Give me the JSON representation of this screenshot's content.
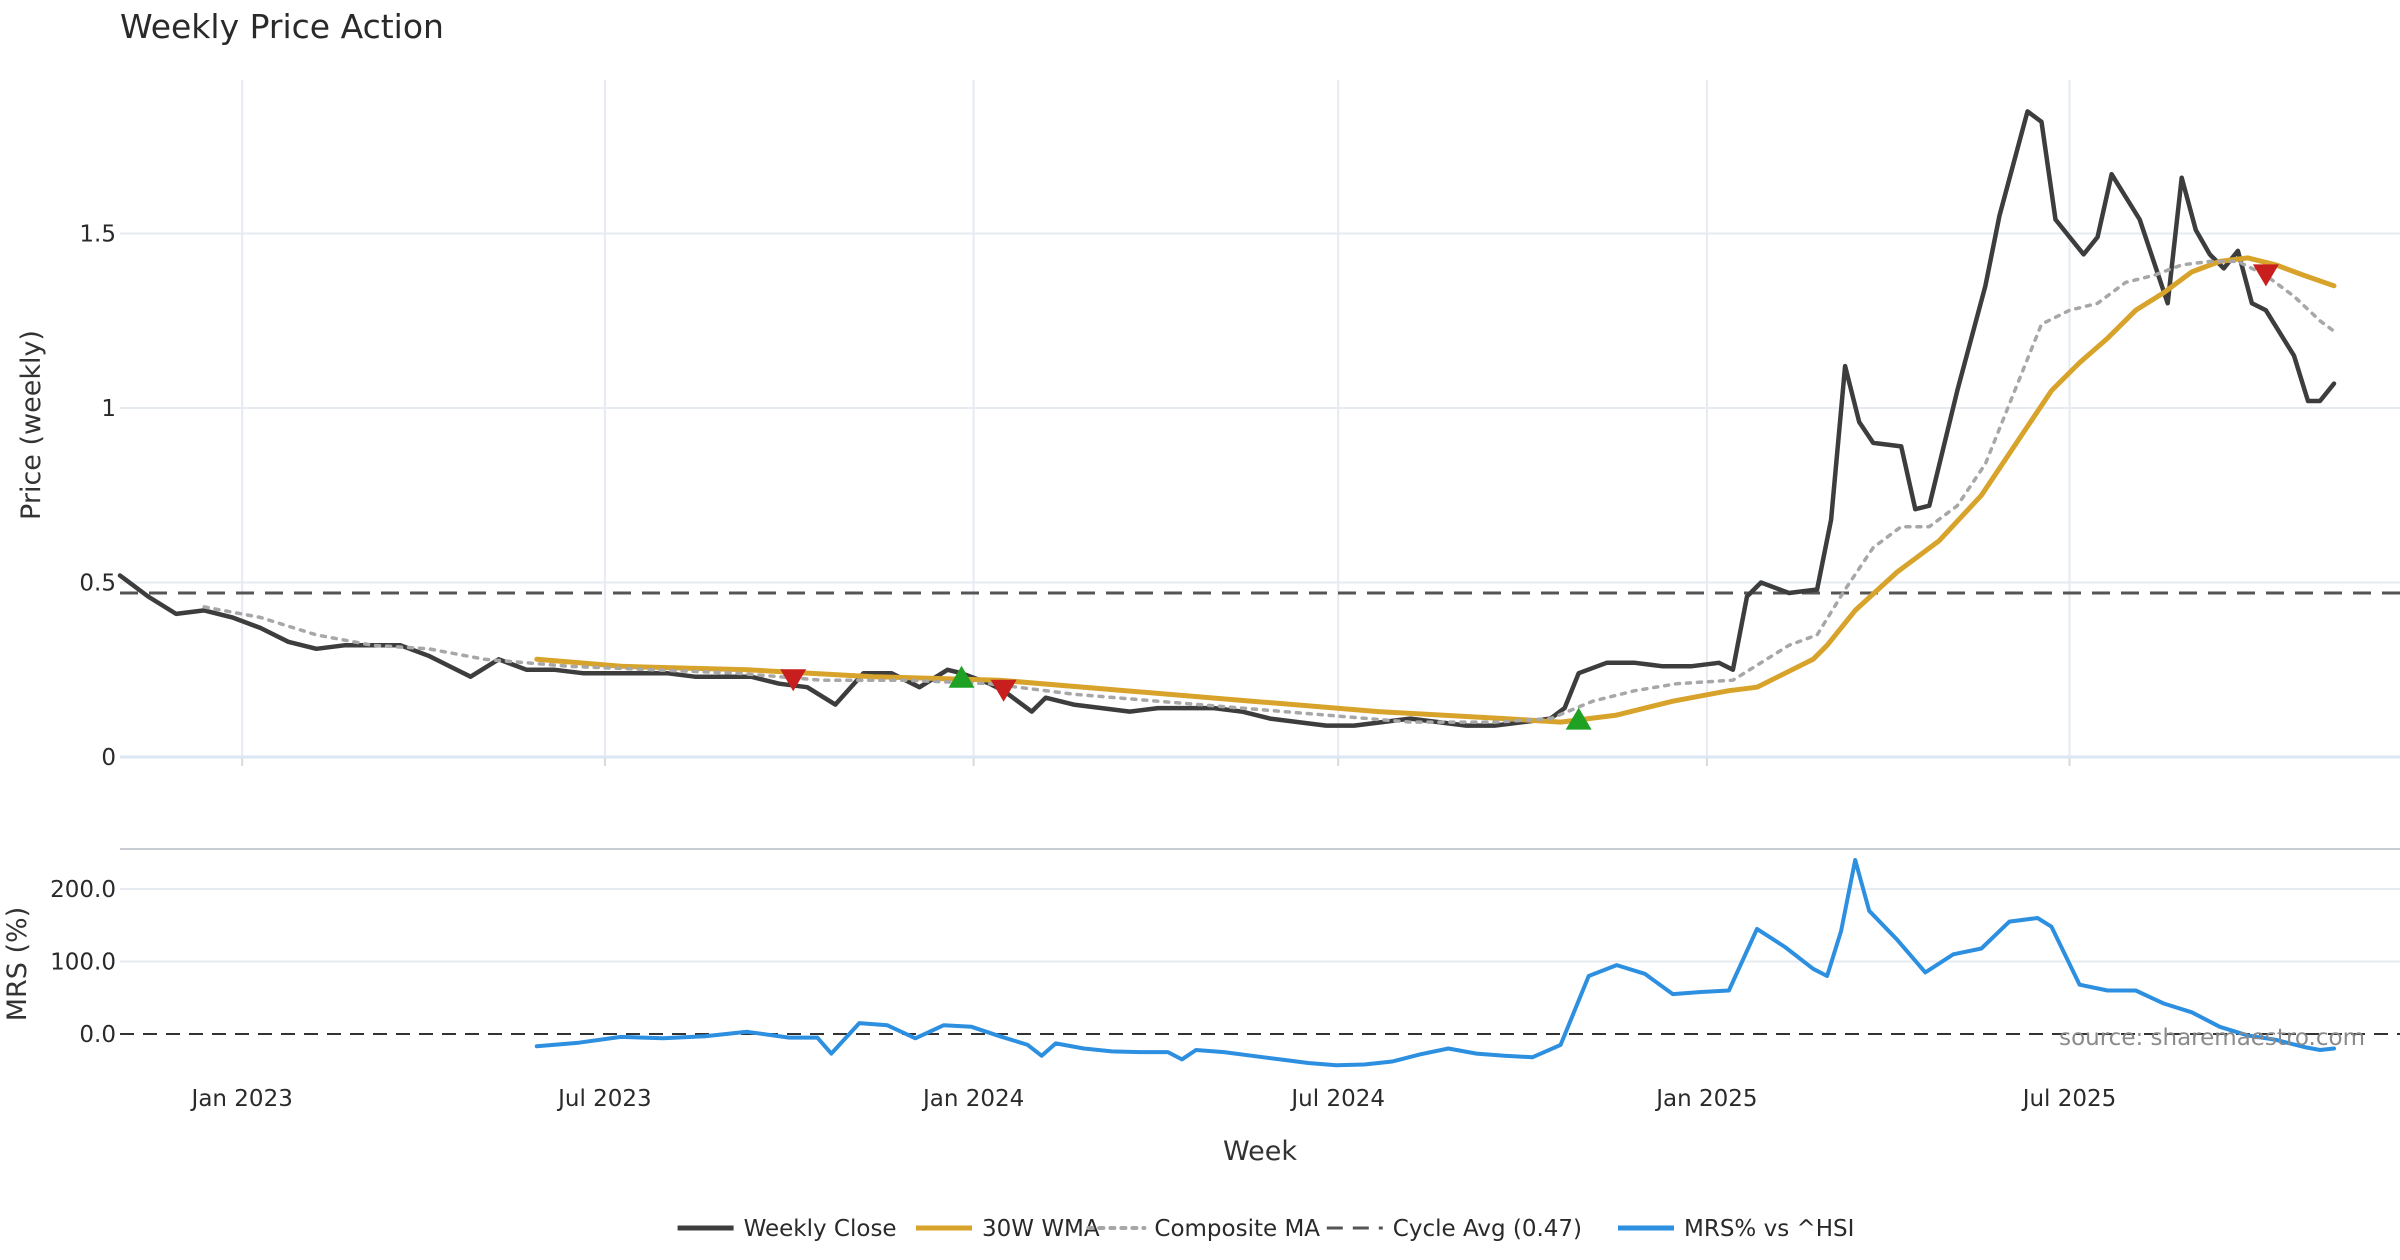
{
  "chart_data": {
    "type": "line",
    "title": "Weekly Price Action",
    "xlabel": "Week",
    "x_ticks": [
      "Jan 2023",
      "Jul 2023",
      "Jan 2024",
      "Jul 2024",
      "Jan 2025",
      "Jul 2025"
    ],
    "x_range": [
      "2022-11-01",
      "2025-11-03"
    ],
    "price_panel": {
      "ylabel": "Price (weekly)",
      "ylim": [
        0,
        1.95
      ],
      "y_ticks": [
        {
          "value": 0,
          "label": "0"
        },
        {
          "value": 0.5,
          "label": "0.5"
        },
        {
          "value": 1,
          "label": "1"
        },
        {
          "value": 1.5,
          "label": "1.5"
        }
      ]
    },
    "mrs_panel": {
      "ylabel": "MRS (%)",
      "ylim": [
        -50,
        250
      ],
      "y_ticks": [
        {
          "value": 0,
          "label": "0.0"
        },
        {
          "value": 100,
          "label": "100.0"
        },
        {
          "value": 200,
          "label": "200.0"
        }
      ]
    },
    "series": [
      {
        "name": "Weekly Close",
        "color": "#3d3d3d",
        "style": "solid",
        "points": [
          [
            "2022-11-01",
            0.52
          ],
          [
            "2022-11-15",
            0.46
          ],
          [
            "2022-11-29",
            0.41
          ],
          [
            "2022-12-13",
            0.42
          ],
          [
            "2022-12-27",
            0.4
          ],
          [
            "2023-01-10",
            0.37
          ],
          [
            "2023-01-24",
            0.33
          ],
          [
            "2023-02-07",
            0.31
          ],
          [
            "2023-02-21",
            0.32
          ],
          [
            "2023-03-07",
            0.32
          ],
          [
            "2023-03-21",
            0.32
          ],
          [
            "2023-04-04",
            0.29
          ],
          [
            "2023-04-18",
            0.25
          ],
          [
            "2023-04-25",
            0.23
          ],
          [
            "2023-05-09",
            0.28
          ],
          [
            "2023-05-23",
            0.25
          ],
          [
            "2023-06-06",
            0.25
          ],
          [
            "2023-06-20",
            0.24
          ],
          [
            "2023-07-04",
            0.24
          ],
          [
            "2023-07-18",
            0.24
          ],
          [
            "2023-08-01",
            0.24
          ],
          [
            "2023-08-15",
            0.23
          ],
          [
            "2023-08-29",
            0.23
          ],
          [
            "2023-09-12",
            0.23
          ],
          [
            "2023-09-26",
            0.21
          ],
          [
            "2023-10-10",
            0.2
          ],
          [
            "2023-10-24",
            0.15
          ],
          [
            "2023-11-07",
            0.24
          ],
          [
            "2023-11-21",
            0.24
          ],
          [
            "2023-12-05",
            0.2
          ],
          [
            "2023-12-19",
            0.25
          ],
          [
            "2023-12-26",
            0.24
          ],
          [
            "2024-01-09",
            0.21
          ],
          [
            "2024-01-16",
            0.19
          ],
          [
            "2024-01-30",
            0.13
          ],
          [
            "2024-02-06",
            0.17
          ],
          [
            "2024-02-20",
            0.15
          ],
          [
            "2024-03-05",
            0.14
          ],
          [
            "2024-03-19",
            0.13
          ],
          [
            "2024-04-02",
            0.14
          ],
          [
            "2024-04-16",
            0.14
          ],
          [
            "2024-04-30",
            0.14
          ],
          [
            "2024-05-14",
            0.13
          ],
          [
            "2024-05-28",
            0.11
          ],
          [
            "2024-06-11",
            0.1
          ],
          [
            "2024-06-25",
            0.09
          ],
          [
            "2024-07-09",
            0.09
          ],
          [
            "2024-07-23",
            0.1
          ],
          [
            "2024-08-06",
            0.11
          ],
          [
            "2024-08-20",
            0.1
          ],
          [
            "2024-09-03",
            0.09
          ],
          [
            "2024-09-17",
            0.09
          ],
          [
            "2024-10-01",
            0.1
          ],
          [
            "2024-10-15",
            0.11
          ],
          [
            "2024-10-22",
            0.14
          ],
          [
            "2024-10-29",
            0.24
          ],
          [
            "2024-11-12",
            0.27
          ],
          [
            "2024-11-26",
            0.27
          ],
          [
            "2024-12-10",
            0.26
          ],
          [
            "2024-12-24",
            0.26
          ],
          [
            "2025-01-07",
            0.27
          ],
          [
            "2025-01-14",
            0.25
          ],
          [
            "2025-01-21",
            0.46
          ],
          [
            "2025-01-28",
            0.5
          ],
          [
            "2025-02-11",
            0.47
          ],
          [
            "2025-02-25",
            0.48
          ],
          [
            "2025-03-04",
            0.68
          ],
          [
            "2025-03-11",
            1.12
          ],
          [
            "2025-03-18",
            0.96
          ],
          [
            "2025-03-25",
            0.9
          ],
          [
            "2025-04-08",
            0.89
          ],
          [
            "2025-04-15",
            0.71
          ],
          [
            "2025-04-22",
            0.72
          ],
          [
            "2025-05-06",
            1.05
          ],
          [
            "2025-05-20",
            1.35
          ],
          [
            "2025-05-27",
            1.55
          ],
          [
            "2025-06-10",
            1.85
          ],
          [
            "2025-06-17",
            1.82
          ],
          [
            "2025-06-24",
            1.54
          ],
          [
            "2025-07-08",
            1.44
          ],
          [
            "2025-07-15",
            1.49
          ],
          [
            "2025-07-22",
            1.67
          ],
          [
            "2025-08-05",
            1.54
          ],
          [
            "2025-08-19",
            1.3
          ],
          [
            "2025-08-26",
            1.66
          ],
          [
            "2025-09-02",
            1.51
          ],
          [
            "2025-09-09",
            1.44
          ],
          [
            "2025-09-16",
            1.4
          ],
          [
            "2025-09-23",
            1.45
          ],
          [
            "2025-09-30",
            1.3
          ],
          [
            "2025-10-07",
            1.28
          ],
          [
            "2025-10-21",
            1.15
          ],
          [
            "2025-10-28",
            1.02
          ],
          [
            "2025-11-03",
            1.02
          ],
          [
            "2025-11-10",
            1.07
          ]
        ]
      },
      {
        "name": "30W WMA",
        "color": "#d8a32b",
        "style": "solid",
        "points": [
          [
            "2023-05-28",
            0.28
          ],
          [
            "2023-07-09",
            0.26
          ],
          [
            "2023-09-10",
            0.25
          ],
          [
            "2023-11-12",
            0.23
          ],
          [
            "2024-01-14",
            0.22
          ],
          [
            "2024-03-17",
            0.19
          ],
          [
            "2024-05-19",
            0.16
          ],
          [
            "2024-07-21",
            0.13
          ],
          [
            "2024-09-22",
            0.11
          ],
          [
            "2024-10-20",
            0.1
          ],
          [
            "2024-11-17",
            0.12
          ],
          [
            "2024-12-15",
            0.16
          ],
          [
            "2025-01-12",
            0.19
          ],
          [
            "2025-01-26",
            0.2
          ],
          [
            "2025-02-23",
            0.28
          ],
          [
            "2025-03-02",
            0.32
          ],
          [
            "2025-03-16",
            0.42
          ],
          [
            "2025-04-06",
            0.53
          ],
          [
            "2025-04-27",
            0.62
          ],
          [
            "2025-05-18",
            0.75
          ],
          [
            "2025-06-08",
            0.93
          ],
          [
            "2025-06-22",
            1.05
          ],
          [
            "2025-07-06",
            1.13
          ],
          [
            "2025-07-20",
            1.2
          ],
          [
            "2025-08-03",
            1.28
          ],
          [
            "2025-08-17",
            1.33
          ],
          [
            "2025-08-31",
            1.39
          ],
          [
            "2025-09-14",
            1.42
          ],
          [
            "2025-09-28",
            1.43
          ],
          [
            "2025-10-12",
            1.41
          ],
          [
            "2025-10-26",
            1.38
          ],
          [
            "2025-11-10",
            1.35
          ]
        ]
      },
      {
        "name": "Composite MA",
        "color": "#a7a7a7",
        "style": "dotted",
        "points": [
          [
            "2022-12-13",
            0.43
          ],
          [
            "2023-01-10",
            0.4
          ],
          [
            "2023-02-07",
            0.35
          ],
          [
            "2023-03-07",
            0.32
          ],
          [
            "2023-04-04",
            0.31
          ],
          [
            "2023-05-02",
            0.28
          ],
          [
            "2023-06-13",
            0.26
          ],
          [
            "2023-07-25",
            0.25
          ],
          [
            "2023-09-05",
            0.24
          ],
          [
            "2023-10-17",
            0.22
          ],
          [
            "2023-11-28",
            0.22
          ],
          [
            "2024-01-09",
            0.21
          ],
          [
            "2024-02-20",
            0.18
          ],
          [
            "2024-04-02",
            0.16
          ],
          [
            "2024-05-14",
            0.14
          ],
          [
            "2024-06-25",
            0.12
          ],
          [
            "2024-08-06",
            0.1
          ],
          [
            "2024-09-17",
            0.1
          ],
          [
            "2024-10-15",
            0.11
          ],
          [
            "2024-11-05",
            0.16
          ],
          [
            "2024-11-26",
            0.19
          ],
          [
            "2024-12-17",
            0.21
          ],
          [
            "2025-01-14",
            0.22
          ],
          [
            "2025-02-11",
            0.32
          ],
          [
            "2025-02-25",
            0.35
          ],
          [
            "2025-03-11",
            0.48
          ],
          [
            "2025-03-25",
            0.6
          ],
          [
            "2025-04-08",
            0.66
          ],
          [
            "2025-04-22",
            0.66
          ],
          [
            "2025-05-06",
            0.72
          ],
          [
            "2025-05-20",
            0.84
          ],
          [
            "2025-06-03",
            1.04
          ],
          [
            "2025-06-17",
            1.24
          ],
          [
            "2025-07-01",
            1.28
          ],
          [
            "2025-07-15",
            1.3
          ],
          [
            "2025-07-29",
            1.36
          ],
          [
            "2025-08-12",
            1.38
          ],
          [
            "2025-08-26",
            1.41
          ],
          [
            "2025-09-09",
            1.42
          ],
          [
            "2025-09-23",
            1.42
          ],
          [
            "2025-10-07",
            1.38
          ],
          [
            "2025-10-21",
            1.32
          ],
          [
            "2025-11-03",
            1.25
          ],
          [
            "2025-11-10",
            1.22
          ]
        ]
      },
      {
        "name": "Cycle Avg (0.47)",
        "color": "#555555",
        "style": "dashed",
        "value": 0.47
      },
      {
        "name": "MRS% vs ^HSI",
        "color": "#2d8fe0",
        "style": "solid",
        "points": [
          [
            "2023-05-28",
            -17
          ],
          [
            "2023-06-18",
            -12
          ],
          [
            "2023-07-09",
            -4
          ],
          [
            "2023-07-30",
            -6
          ],
          [
            "2023-08-20",
            -3
          ],
          [
            "2023-09-10",
            3
          ],
          [
            "2023-10-01",
            -5
          ],
          [
            "2023-10-15",
            -5
          ],
          [
            "2023-10-22",
            -27
          ],
          [
            "2023-11-05",
            15
          ],
          [
            "2023-11-19",
            12
          ],
          [
            "2023-12-03",
            -6
          ],
          [
            "2023-12-17",
            12
          ],
          [
            "2023-12-31",
            10
          ],
          [
            "2024-01-14",
            -3
          ],
          [
            "2024-01-28",
            -15
          ],
          [
            "2024-02-04",
            -30
          ],
          [
            "2024-02-11",
            -13
          ],
          [
            "2024-02-25",
            -20
          ],
          [
            "2024-03-10",
            -24
          ],
          [
            "2024-03-24",
            -25
          ],
          [
            "2024-04-07",
            -25
          ],
          [
            "2024-04-14",
            -35
          ],
          [
            "2024-04-21",
            -22
          ],
          [
            "2024-05-05",
            -25
          ],
          [
            "2024-05-19",
            -30
          ],
          [
            "2024-06-02",
            -35
          ],
          [
            "2024-06-16",
            -40
          ],
          [
            "2024-06-30",
            -43
          ],
          [
            "2024-07-14",
            -42
          ],
          [
            "2024-07-28",
            -38
          ],
          [
            "2024-08-11",
            -28
          ],
          [
            "2024-08-25",
            -20
          ],
          [
            "2024-09-08",
            -27
          ],
          [
            "2024-09-22",
            -30
          ],
          [
            "2024-10-06",
            -32
          ],
          [
            "2024-10-20",
            -15
          ],
          [
            "2024-11-03",
            80
          ],
          [
            "2024-11-17",
            95
          ],
          [
            "2024-12-01",
            83
          ],
          [
            "2024-12-15",
            55
          ],
          [
            "2024-12-29",
            58
          ],
          [
            "2025-01-12",
            60
          ],
          [
            "2025-01-26",
            145
          ],
          [
            "2025-02-09",
            120
          ],
          [
            "2025-02-23",
            90
          ],
          [
            "2025-03-02",
            80
          ],
          [
            "2025-03-09",
            142
          ],
          [
            "2025-03-16",
            240
          ],
          [
            "2025-03-23",
            170
          ],
          [
            "2025-04-06",
            130
          ],
          [
            "2025-04-20",
            85
          ],
          [
            "2025-05-04",
            110
          ],
          [
            "2025-05-18",
            118
          ],
          [
            "2025-06-01",
            155
          ],
          [
            "2025-06-15",
            160
          ],
          [
            "2025-06-22",
            148
          ],
          [
            "2025-07-06",
            68
          ],
          [
            "2025-07-20",
            60
          ],
          [
            "2025-08-03",
            60
          ],
          [
            "2025-08-17",
            42
          ],
          [
            "2025-08-31",
            30
          ],
          [
            "2025-09-14",
            10
          ],
          [
            "2025-09-28",
            -2
          ],
          [
            "2025-10-12",
            -8
          ],
          [
            "2025-10-26",
            -18
          ],
          [
            "2025-11-03",
            -22
          ],
          [
            "2025-11-10",
            -20
          ]
        ]
      }
    ],
    "signals": [
      {
        "type": "sell",
        "date": "2023-10-03",
        "value": 0.22,
        "color": "#c81e1e"
      },
      {
        "type": "buy",
        "date": "2023-12-26",
        "value": 0.23,
        "color": "#1fa224"
      },
      {
        "type": "sell",
        "date": "2024-01-16",
        "value": 0.19,
        "color": "#c81e1e"
      },
      {
        "type": "buy",
        "date": "2024-10-29",
        "value": 0.11,
        "color": "#1fa224"
      },
      {
        "type": "sell",
        "date": "2025-10-07",
        "value": 1.38,
        "color": "#c81e1e"
      }
    ],
    "legend": [
      {
        "label": "Weekly Close",
        "color": "#3d3d3d",
        "style": "solid"
      },
      {
        "label": "30W WMA",
        "color": "#d8a32b",
        "style": "solid"
      },
      {
        "label": "Composite MA",
        "color": "#a7a7a7",
        "style": "dotted"
      },
      {
        "label": "Cycle Avg (0.47)",
        "color": "#555555",
        "style": "dashed"
      },
      {
        "label": "MRS% vs ^HSI",
        "color": "#2d8fe0",
        "style": "solid"
      }
    ],
    "legend_position": "bottom-center",
    "source": "source: sharemaestro.com"
  }
}
